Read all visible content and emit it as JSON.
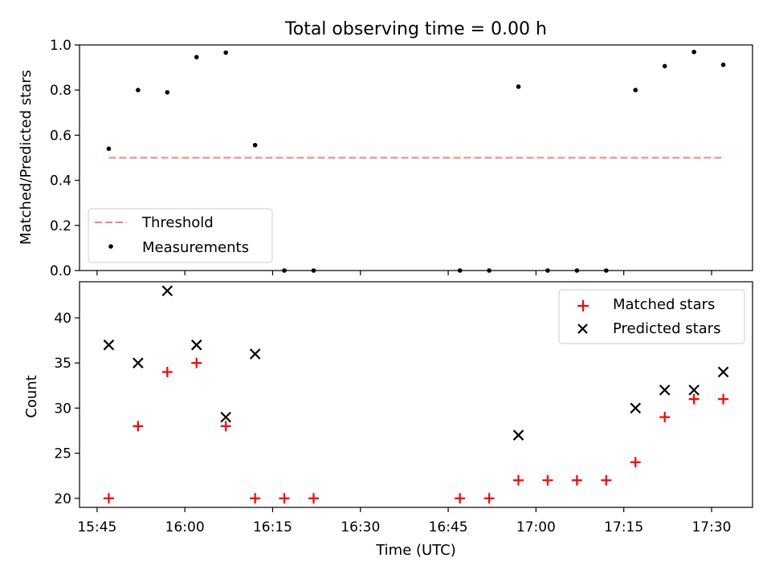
{
  "title": "Total observing time = 0.00 h",
  "chart_data": [
    {
      "type": "scatter",
      "ylabel": "Matched/Predicted stars",
      "ylim": [
        0.0,
        1.0
      ],
      "x_axis": "time",
      "yticks": [
        "0.0",
        "0.2",
        "0.4",
        "0.6",
        "0.8",
        "1.0"
      ],
      "threshold": {
        "name": "Threshold",
        "value": 0.5,
        "x_range": [
          "15:47",
          "17:32"
        ],
        "color": "#ff7f7f",
        "style": "dashed"
      },
      "series": [
        {
          "name": "Measurements",
          "color": "#000000",
          "marker": "dot",
          "points": [
            {
              "x": "15:47",
              "y": 0.54
            },
            {
              "x": "15:52",
              "y": 0.8
            },
            {
              "x": "15:57",
              "y": 0.79
            },
            {
              "x": "16:02",
              "y": 0.946
            },
            {
              "x": "16:07",
              "y": 0.966
            },
            {
              "x": "16:12",
              "y": 0.556
            },
            {
              "x": "16:17",
              "y": 0.0
            },
            {
              "x": "16:22",
              "y": 0.0
            },
            {
              "x": "16:47",
              "y": 0.0
            },
            {
              "x": "16:52",
              "y": 0.0
            },
            {
              "x": "16:57",
              "y": 0.815
            },
            {
              "x": "17:02",
              "y": 0.0
            },
            {
              "x": "17:07",
              "y": 0.0
            },
            {
              "x": "17:12",
              "y": 0.0
            },
            {
              "x": "17:17",
              "y": 0.8
            },
            {
              "x": "17:22",
              "y": 0.906
            },
            {
              "x": "17:27",
              "y": 0.969
            },
            {
              "x": "17:32",
              "y": 0.912
            }
          ]
        }
      ],
      "legend": {
        "position": "lower-left",
        "entries": [
          "Threshold",
          "Measurements"
        ]
      }
    },
    {
      "type": "scatter",
      "xlabel": "Time (UTC)",
      "ylabel": "Count",
      "x_axis": "time",
      "xlim": [
        "15:42",
        "17:37"
      ],
      "xticks": [
        "15:45",
        "16:00",
        "16:15",
        "16:30",
        "16:45",
        "17:00",
        "17:15",
        "17:30"
      ],
      "ylim": [
        19,
        44
      ],
      "yticks": [
        "20",
        "25",
        "30",
        "35",
        "40"
      ],
      "series": [
        {
          "name": "Matched stars",
          "color": "#ff0000",
          "marker": "plus",
          "points": [
            {
              "x": "15:47",
              "y": 20
            },
            {
              "x": "15:52",
              "y": 28
            },
            {
              "x": "15:57",
              "y": 34
            },
            {
              "x": "16:02",
              "y": 35
            },
            {
              "x": "16:07",
              "y": 28
            },
            {
              "x": "16:12",
              "y": 20
            },
            {
              "x": "16:17",
              "y": 20
            },
            {
              "x": "16:22",
              "y": 20
            },
            {
              "x": "16:47",
              "y": 20
            },
            {
              "x": "16:52",
              "y": 20
            },
            {
              "x": "16:57",
              "y": 22
            },
            {
              "x": "17:02",
              "y": 22
            },
            {
              "x": "17:07",
              "y": 22
            },
            {
              "x": "17:12",
              "y": 22
            },
            {
              "x": "17:17",
              "y": 24
            },
            {
              "x": "17:22",
              "y": 29
            },
            {
              "x": "17:27",
              "y": 31
            },
            {
              "x": "17:32",
              "y": 31
            }
          ]
        },
        {
          "name": "Predicted stars",
          "color": "#000000",
          "marker": "x",
          "points": [
            {
              "x": "15:47",
              "y": 37
            },
            {
              "x": "15:52",
              "y": 35
            },
            {
              "x": "15:57",
              "y": 43
            },
            {
              "x": "16:02",
              "y": 37
            },
            {
              "x": "16:07",
              "y": 29
            },
            {
              "x": "16:12",
              "y": 36
            },
            {
              "x": "16:57",
              "y": 27
            },
            {
              "x": "17:17",
              "y": 30
            },
            {
              "x": "17:22",
              "y": 32
            },
            {
              "x": "17:27",
              "y": 32
            },
            {
              "x": "17:32",
              "y": 34
            }
          ]
        }
      ],
      "legend": {
        "position": "upper-right",
        "entries": [
          "Matched stars",
          "Predicted stars"
        ]
      }
    }
  ]
}
